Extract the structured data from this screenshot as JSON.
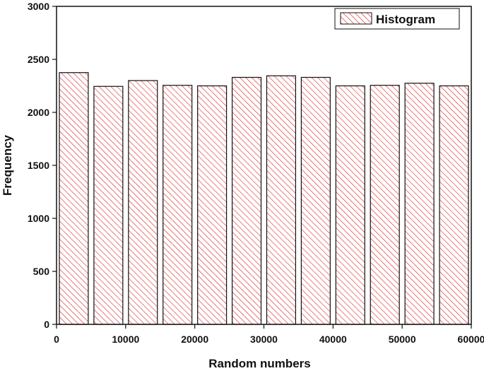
{
  "chart_data": {
    "type": "bar",
    "xlabel": "Random numbers",
    "ylabel": "Frequency",
    "xlim": [
      0,
      60000
    ],
    "ylim": [
      0,
      3000
    ],
    "x_ticks": [
      0,
      10000,
      20000,
      30000,
      40000,
      50000,
      60000
    ],
    "y_ticks": [
      0,
      500,
      1000,
      1500,
      2000,
      2500,
      3000
    ],
    "x_tick_labels": [
      "0",
      "10000",
      "20000",
      "30000",
      "40000",
      "50000",
      "60000"
    ],
    "y_tick_labels": [
      "0",
      "500",
      "1000",
      "1500",
      "2000",
      "2500",
      "3000"
    ],
    "bin_width": 5000,
    "bins": [
      {
        "start": 0,
        "end": 5000,
        "value": 2375
      },
      {
        "start": 5000,
        "end": 10000,
        "value": 2245
      },
      {
        "start": 10000,
        "end": 15000,
        "value": 2300
      },
      {
        "start": 15000,
        "end": 20000,
        "value": 2255
      },
      {
        "start": 20000,
        "end": 25000,
        "value": 2250
      },
      {
        "start": 25000,
        "end": 30000,
        "value": 2330
      },
      {
        "start": 30000,
        "end": 35000,
        "value": 2345
      },
      {
        "start": 35000,
        "end": 40000,
        "value": 2330
      },
      {
        "start": 40000,
        "end": 45000,
        "value": 2250
      },
      {
        "start": 45000,
        "end": 50000,
        "value": 2255
      },
      {
        "start": 50000,
        "end": 55000,
        "value": 2275
      },
      {
        "start": 55000,
        "end": 60000,
        "value": 2250
      }
    ],
    "legend": {
      "label": "Histogram",
      "position": "top-right"
    },
    "bar_color": "#dd2222",
    "grid": false
  }
}
